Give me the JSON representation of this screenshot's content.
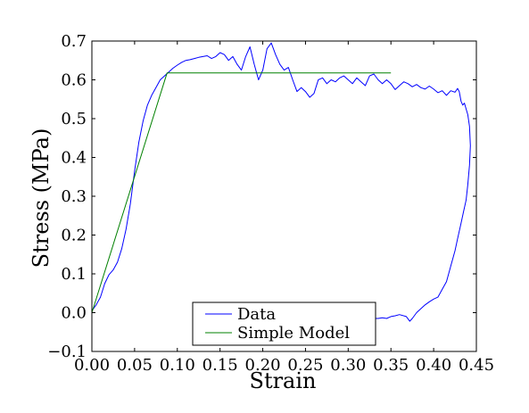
{
  "chart_data": {
    "type": "line",
    "xlabel": "Strain",
    "ylabel": "Stress (MPa)",
    "xlim": [
      0.0,
      0.45
    ],
    "ylim": [
      -0.1,
      0.7
    ],
    "xticks": [
      "0.00",
      "0.05",
      "0.10",
      "0.15",
      "0.20",
      "0.25",
      "0.30",
      "0.35",
      "0.40",
      "0.45"
    ],
    "yticks": [
      "−0.1",
      "0.0",
      "0.1",
      "0.2",
      "0.3",
      "0.4",
      "0.5",
      "0.6",
      "0.7"
    ],
    "grid": false,
    "legend": {
      "position": "bottom-center"
    },
    "series": [
      {
        "name": "Data",
        "color": "#0000ff",
        "points": [
          [
            0.0,
            0.005
          ],
          [
            0.005,
            0.02
          ],
          [
            0.01,
            0.04
          ],
          [
            0.015,
            0.075
          ],
          [
            0.02,
            0.098
          ],
          [
            0.025,
            0.11
          ],
          [
            0.03,
            0.13
          ],
          [
            0.035,
            0.165
          ],
          [
            0.04,
            0.215
          ],
          [
            0.045,
            0.28
          ],
          [
            0.05,
            0.365
          ],
          [
            0.055,
            0.44
          ],
          [
            0.06,
            0.495
          ],
          [
            0.065,
            0.535
          ],
          [
            0.07,
            0.56
          ],
          [
            0.075,
            0.58
          ],
          [
            0.08,
            0.6
          ],
          [
            0.085,
            0.61
          ],
          [
            0.09,
            0.62
          ],
          [
            0.095,
            0.63
          ],
          [
            0.1,
            0.638
          ],
          [
            0.105,
            0.645
          ],
          [
            0.11,
            0.65
          ],
          [
            0.115,
            0.652
          ],
          [
            0.12,
            0.655
          ],
          [
            0.125,
            0.658
          ],
          [
            0.13,
            0.66
          ],
          [
            0.135,
            0.662
          ],
          [
            0.14,
            0.655
          ],
          [
            0.145,
            0.66
          ],
          [
            0.15,
            0.67
          ],
          [
            0.155,
            0.665
          ],
          [
            0.16,
            0.65
          ],
          [
            0.165,
            0.66
          ],
          [
            0.17,
            0.64
          ],
          [
            0.175,
            0.625
          ],
          [
            0.18,
            0.66
          ],
          [
            0.185,
            0.685
          ],
          [
            0.19,
            0.64
          ],
          [
            0.195,
            0.6
          ],
          [
            0.2,
            0.625
          ],
          [
            0.205,
            0.68
          ],
          [
            0.21,
            0.695
          ],
          [
            0.215,
            0.665
          ],
          [
            0.22,
            0.64
          ],
          [
            0.225,
            0.625
          ],
          [
            0.23,
            0.632
          ],
          [
            0.235,
            0.6
          ],
          [
            0.24,
            0.57
          ],
          [
            0.245,
            0.58
          ],
          [
            0.25,
            0.57
          ],
          [
            0.255,
            0.555
          ],
          [
            0.26,
            0.565
          ],
          [
            0.265,
            0.6
          ],
          [
            0.27,
            0.605
          ],
          [
            0.275,
            0.59
          ],
          [
            0.28,
            0.6
          ],
          [
            0.285,
            0.595
          ],
          [
            0.29,
            0.605
          ],
          [
            0.295,
            0.61
          ],
          [
            0.3,
            0.6
          ],
          [
            0.305,
            0.59
          ],
          [
            0.31,
            0.605
          ],
          [
            0.315,
            0.595
          ],
          [
            0.32,
            0.585
          ],
          [
            0.325,
            0.61
          ],
          [
            0.33,
            0.615
          ],
          [
            0.335,
            0.6
          ],
          [
            0.34,
            0.59
          ],
          [
            0.345,
            0.6
          ],
          [
            0.35,
            0.59
          ],
          [
            0.355,
            0.575
          ],
          [
            0.36,
            0.585
          ],
          [
            0.365,
            0.595
          ],
          [
            0.37,
            0.59
          ],
          [
            0.375,
            0.582
          ],
          [
            0.38,
            0.588
          ],
          [
            0.385,
            0.58
          ],
          [
            0.39,
            0.576
          ],
          [
            0.395,
            0.584
          ],
          [
            0.4,
            0.576
          ],
          [
            0.405,
            0.567
          ],
          [
            0.41,
            0.572
          ],
          [
            0.415,
            0.56
          ],
          [
            0.42,
            0.572
          ],
          [
            0.425,
            0.568
          ],
          [
            0.428,
            0.578
          ],
          [
            0.43,
            0.57
          ],
          [
            0.432,
            0.545
          ],
          [
            0.434,
            0.535
          ],
          [
            0.436,
            0.54
          ],
          [
            0.438,
            0.525
          ],
          [
            0.44,
            0.51
          ],
          [
            0.442,
            0.48
          ],
          [
            0.443,
            0.43
          ],
          [
            0.442,
            0.38
          ],
          [
            0.44,
            0.33
          ],
          [
            0.438,
            0.29
          ],
          [
            0.435,
            0.26
          ],
          [
            0.432,
            0.23
          ],
          [
            0.428,
            0.19
          ],
          [
            0.425,
            0.16
          ],
          [
            0.42,
            0.12
          ],
          [
            0.415,
            0.08
          ],
          [
            0.41,
            0.06
          ],
          [
            0.405,
            0.04
          ],
          [
            0.4,
            0.035
          ],
          [
            0.395,
            0.028
          ],
          [
            0.39,
            0.02
          ],
          [
            0.385,
            0.01
          ],
          [
            0.38,
            0.0
          ],
          [
            0.375,
            -0.015
          ],
          [
            0.372,
            -0.022
          ],
          [
            0.368,
            -0.01
          ],
          [
            0.36,
            -0.005
          ],
          [
            0.355,
            -0.008
          ],
          [
            0.35,
            -0.01
          ],
          [
            0.345,
            -0.015
          ],
          [
            0.34,
            -0.013
          ],
          [
            0.335,
            -0.015
          ],
          [
            0.33,
            -0.015
          ],
          [
            0.32,
            -0.018
          ],
          [
            0.31,
            -0.015
          ],
          [
            0.3,
            -0.02
          ],
          [
            0.29,
            -0.018
          ],
          [
            0.28,
            -0.02
          ]
        ]
      },
      {
        "name": "Simple Model",
        "color": "#008000",
        "points": [
          [
            0.0,
            0.0
          ],
          [
            0.088,
            0.618
          ],
          [
            0.35,
            0.618
          ]
        ]
      }
    ]
  }
}
